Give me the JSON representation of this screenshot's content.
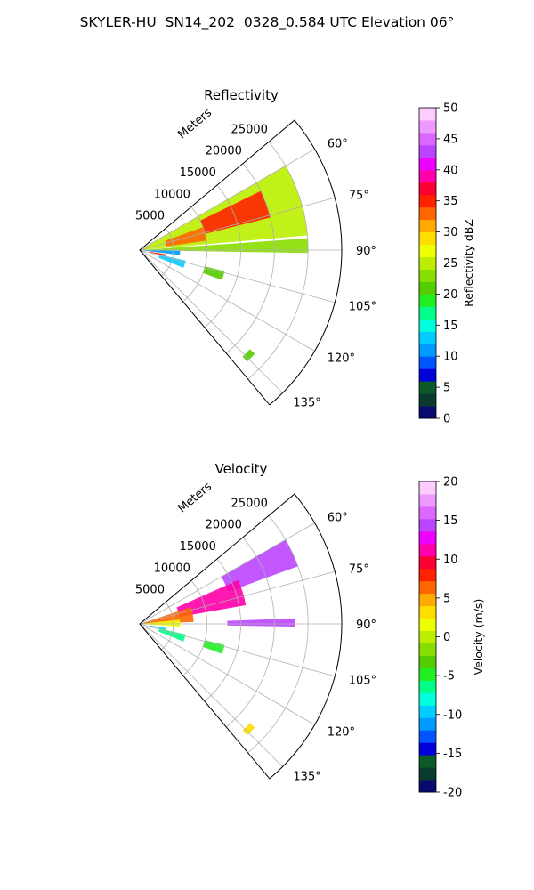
{
  "figure": {
    "title": "SKYLER-HU  SN14_202  0328_0.584 UTC Elevation 06°"
  },
  "chart_data": [
    {
      "type": "heatmap",
      "panel": "reflectivity",
      "title": "Reflectivity",
      "projection": "polar-sector",
      "range_label": "Meters",
      "range_ticks": [
        5000,
        10000,
        15000,
        20000,
        25000
      ],
      "range_tick_labels": [
        "5000",
        "10000",
        "15000",
        "20000",
        "25000"
      ],
      "rlim": [
        0,
        30000
      ],
      "azimuth_range_deg": [
        50,
        140
      ],
      "azimuth_ticks_deg": [
        60,
        75,
        90,
        105,
        120,
        135
      ],
      "azimuth_tick_labels": [
        "60°",
        "75°",
        "90°",
        "105°",
        "120°",
        "135°"
      ],
      "grid": true,
      "colorbar": {
        "label": "Reflectivity dBZ",
        "vmin": 0,
        "vmax": 50,
        "ticks": [
          0,
          5,
          10,
          15,
          20,
          25,
          30,
          35,
          40,
          45,
          50
        ],
        "tick_labels": [
          "0",
          "5",
          "10",
          "15",
          "20",
          "25",
          "30",
          "35",
          "40",
          "45",
          "50"
        ],
        "colors": [
          "#0a0a6e",
          "#083a2e",
          "#0b5a28",
          "#0000d8",
          "#0055ff",
          "#0099ff",
          "#00ccff",
          "#00ffdd",
          "#00ff88",
          "#22ee22",
          "#55cc00",
          "#88dd00",
          "#bbee00",
          "#eeff00",
          "#ffdd00",
          "#ffaa00",
          "#ff6600",
          "#ff2200",
          "#ff0033",
          "#ff00aa",
          "#ee00ff",
          "#bb44ff",
          "#dd66ff",
          "#ee99ff",
          "#ffccff"
        ]
      },
      "echoes": [
        {
          "az": [
            60,
            85
          ],
          "r": [
            0.2,
            25
          ],
          "dbz": 25
        },
        {
          "az": [
            64,
            76
          ],
          "r": [
            10,
            20
          ],
          "dbz": 35
        },
        {
          "az": [
            70,
            82
          ],
          "r": [
            4,
            10
          ],
          "dbz": 33
        },
        {
          "az": [
            86,
            91
          ],
          "r": [
            0.5,
            25
          ],
          "dbz": 22
        },
        {
          "az": [
            91,
            97
          ],
          "r": [
            0.5,
            6
          ],
          "dbz": 10
        },
        {
          "az": [
            99,
            103
          ],
          "r": [
            1.5,
            4
          ],
          "dbz": 35
        },
        {
          "az": [
            103,
            112
          ],
          "r": [
            3,
            7
          ],
          "dbz": 12
        },
        {
          "az": [
            104,
            110
          ],
          "r": [
            10,
            13
          ],
          "dbz": 20
        },
        {
          "az": [
            132,
            136
          ],
          "r": [
            22,
            23
          ],
          "dbz": 20
        }
      ]
    },
    {
      "type": "heatmap",
      "panel": "velocity",
      "title": "Velocity",
      "projection": "polar-sector",
      "range_label": "Meters",
      "range_ticks": [
        5000,
        10000,
        15000,
        20000,
        25000
      ],
      "range_tick_labels": [
        "5000",
        "10000",
        "15000",
        "20000",
        "25000"
      ],
      "rlim": [
        0,
        30000
      ],
      "azimuth_range_deg": [
        50,
        140
      ],
      "azimuth_ticks_deg": [
        60,
        75,
        90,
        105,
        120,
        135
      ],
      "azimuth_tick_labels": [
        "60°",
        "75°",
        "90°",
        "105°",
        "120°",
        "135°"
      ],
      "grid": true,
      "colorbar": {
        "label": "Velocity (m/s)",
        "vmin": -20,
        "vmax": 20,
        "ticks": [
          -20,
          -15,
          -10,
          -5,
          0,
          5,
          10,
          15,
          20
        ],
        "tick_labels": [
          "-20",
          "-15",
          "-10",
          "-5",
          "0",
          "5",
          "10",
          "15",
          "20"
        ],
        "colors": [
          "#0a0a6e",
          "#083a2e",
          "#0b5a28",
          "#0000d8",
          "#0055ff",
          "#0099ff",
          "#00ccff",
          "#00ffdd",
          "#00ff88",
          "#22ee22",
          "#55cc00",
          "#88dd00",
          "#bbee00",
          "#eeff00",
          "#ffdd00",
          "#ffaa00",
          "#ff6600",
          "#ff2200",
          "#ff0033",
          "#ff00aa",
          "#ee00ff",
          "#bb44ff",
          "#dd66ff",
          "#ee99ff",
          "#ffccff"
        ]
      },
      "echoes": [
        {
          "az": [
            60,
            70
          ],
          "r": [
            14,
            25
          ],
          "vel": 15
        },
        {
          "az": [
            66,
            80
          ],
          "r": [
            6,
            16
          ],
          "vel": 11
        },
        {
          "az": [
            72,
            88
          ],
          "r": [
            0.5,
            8
          ],
          "vel": 7
        },
        {
          "az": [
            84,
            94
          ],
          "r": [
            0.2,
            6
          ],
          "vel": 1
        },
        {
          "az": [
            88,
            91
          ],
          "r": [
            13,
            23
          ],
          "vel": 14
        },
        {
          "az": [
            99,
            103
          ],
          "r": [
            1.5,
            4
          ],
          "vel": -9
        },
        {
          "az": [
            103,
            112
          ],
          "r": [
            3,
            7
          ],
          "vel": -7
        },
        {
          "az": [
            104,
            110
          ],
          "r": [
            10,
            13
          ],
          "vel": -5
        },
        {
          "az": [
            132,
            136
          ],
          "r": [
            22,
            23
          ],
          "vel": 3
        }
      ]
    }
  ]
}
